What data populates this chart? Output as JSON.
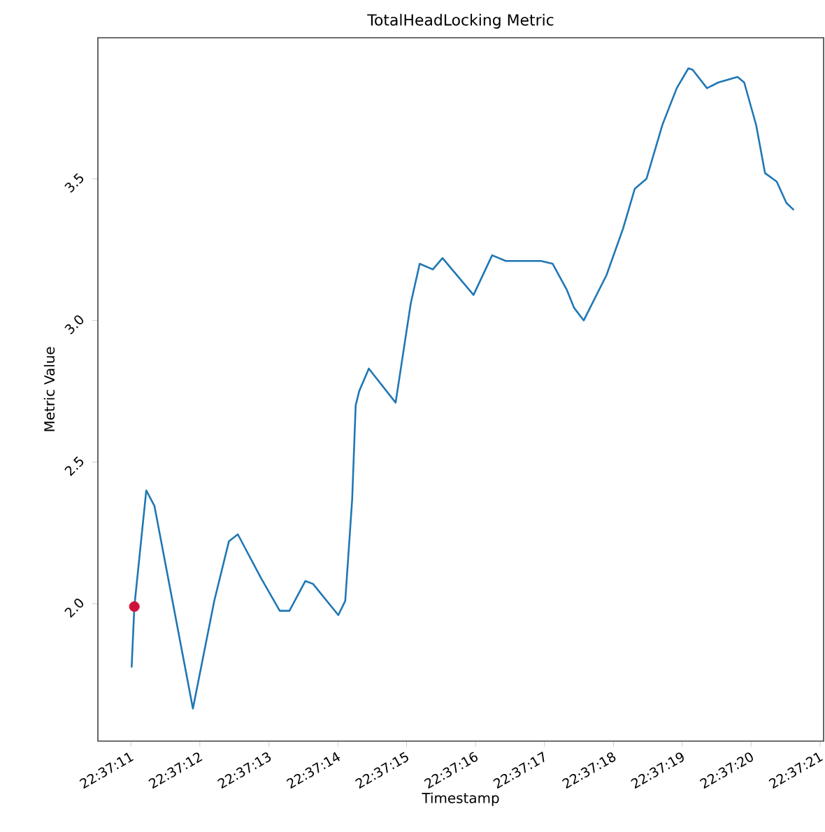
{
  "chart_data": {
    "type": "line",
    "title": "TotalHeadLocking Metric",
    "xlabel": "Timestamp",
    "ylabel": "Metric Value",
    "xlim": [
      22.619589,
      22.622514
    ],
    "ylim": [
      1.515,
      3.998
    ],
    "xticks": [
      {
        "value": 22.619722,
        "label": "22:37:11"
      },
      {
        "value": 22.62,
        "label": "22:37:12"
      },
      {
        "value": 22.620278,
        "label": "22:37:13"
      },
      {
        "value": 22.620556,
        "label": "22:37:14"
      },
      {
        "value": 22.620833,
        "label": "22:37:15"
      },
      {
        "value": 22.621111,
        "label": "22:37:16"
      },
      {
        "value": 22.621389,
        "label": "22:37:17"
      },
      {
        "value": 22.621667,
        "label": "22:37:18"
      },
      {
        "value": 22.621944,
        "label": "22:37:19"
      },
      {
        "value": 22.622222,
        "label": "22:37:20"
      },
      {
        "value": 22.6225,
        "label": "22:37:21"
      }
    ],
    "yticks": [
      {
        "value": 2,
        "label": "2.0"
      },
      {
        "value": 2.5,
        "label": "2.5"
      },
      {
        "value": 3,
        "label": "3.0"
      },
      {
        "value": 3.5,
        "label": "3.5"
      }
    ],
    "series": [
      {
        "color": "#1f77b4",
        "x": [
          22.619725,
          22.619736,
          22.619784,
          22.619817,
          22.619972,
          22.620058,
          22.620117,
          22.620153,
          22.620247,
          22.620322,
          22.620361,
          22.620425,
          22.620456,
          22.620558,
          22.620586,
          22.620614,
          22.620628,
          22.620642,
          22.620681,
          22.620789,
          22.62085,
          22.620886,
          22.620939,
          22.620978,
          22.621103,
          22.621178,
          22.621233,
          22.621375,
          22.621422,
          22.621478,
          22.621508,
          22.621547,
          22.621639,
          22.621706,
          22.621753,
          22.6218,
          22.621864,
          22.621922,
          22.621969,
          22.621986,
          22.622044,
          22.622089,
          22.622167,
          22.622194,
          22.622242,
          22.622278,
          22.622325,
          22.622364,
          22.622394
        ],
        "values": [
          1.775,
          1.99,
          2.4,
          2.345,
          1.63,
          2.01,
          2.22,
          2.245,
          2.09,
          1.975,
          1.975,
          2.08,
          2.07,
          1.96,
          2.01,
          2.37,
          2.7,
          2.75,
          2.83,
          2.71,
          3.06,
          3.2,
          3.18,
          3.22,
          3.09,
          3.23,
          3.21,
          3.21,
          3.2,
          3.11,
          3.045,
          3.0,
          3.16,
          3.325,
          3.465,
          3.5,
          3.69,
          3.82,
          3.89,
          3.885,
          3.82,
          3.84,
          3.86,
          3.84,
          3.69,
          3.52,
          3.49,
          3.415,
          3.39
        ]
      },
      {
        "type": "scatter",
        "color": "#d0103a",
        "marker": "circle",
        "x": [
          22.619736
        ],
        "values": [
          1.99
        ]
      }
    ]
  }
}
